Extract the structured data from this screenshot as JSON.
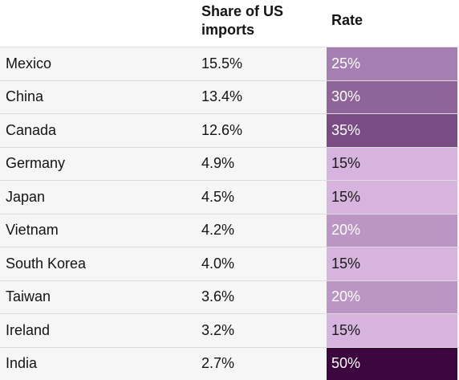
{
  "headers": {
    "country": "",
    "share": "Share of US imports",
    "rate": "Rate"
  },
  "colors": {
    "25%": "#a57fb2",
    "30%": "#8e6499",
    "35%": "#7a4c86",
    "15%": "#d7b4de",
    "20%": "#bb96c4",
    "50%": "#3c073f"
  },
  "chart_data": {
    "type": "table",
    "columns": [
      "",
      "Share of US imports",
      "Rate"
    ],
    "rows": [
      {
        "country": "Mexico",
        "share": "15.5%",
        "rate": "25%"
      },
      {
        "country": "China",
        "share": "13.4%",
        "rate": "30%"
      },
      {
        "country": "Canada",
        "share": "12.6%",
        "rate": "35%"
      },
      {
        "country": "Germany",
        "share": "4.9%",
        "rate": "15%"
      },
      {
        "country": "Japan",
        "share": "4.5%",
        "rate": "15%"
      },
      {
        "country": "Vietnam",
        "share": "4.2%",
        "rate": "20%"
      },
      {
        "country": "South Korea",
        "share": "4.0%",
        "rate": "15%"
      },
      {
        "country": "Taiwan",
        "share": "3.6%",
        "rate": "20%"
      },
      {
        "country": "Ireland",
        "share": "3.2%",
        "rate": "15%"
      },
      {
        "country": "India",
        "share": "2.7%",
        "rate": "50%"
      }
    ]
  }
}
